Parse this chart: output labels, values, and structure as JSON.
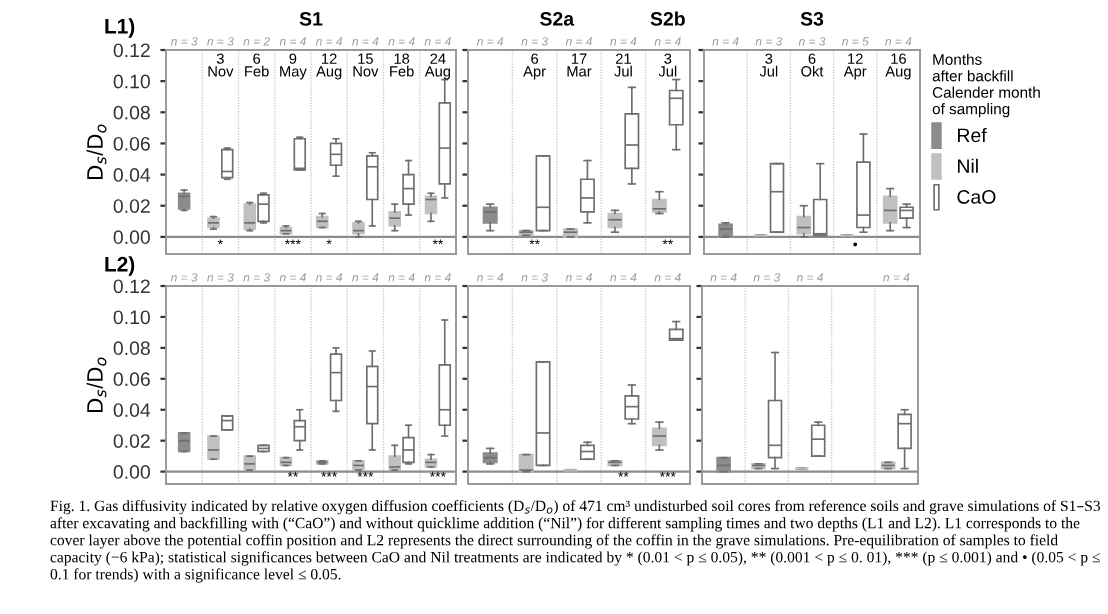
{
  "chart_data": [
    {
      "type": "box",
      "title": "S1",
      "ylabel": "D$_{s}$/D$_{o}$",
      "categories": [
        null,
        "3\nNov",
        "6\nFeb",
        "9\nMay",
        "12\nAug",
        "15\nNov",
        "18\nFeb",
        "24\nAug"
      ],
      "ylim": [
        -0.011,
        0.12
      ],
      "yticks": [
        {
          "value": 0,
          "label": "0.00"
        },
        {
          "value": 0.02,
          "label": "0.02"
        },
        {
          "value": 0.04,
          "label": "0.04"
        },
        {
          "value": 0.06,
          "label": "0.06"
        },
        {
          "value": 0.08,
          "label": "0.08"
        },
        {
          "value": 0.1,
          "label": "0.10"
        },
        {
          "value": 0.12,
          "label": "0.12"
        }
      ],
      "ref_lines": [
        {
          "axis": "y",
          "value": 0,
          "color": "#8c8c8c"
        }
      ],
      "annotations": [
        "n = 3",
        "n = 3",
        "n = 2",
        "n = 4",
        "n = 4",
        "n = 4",
        "n = 4",
        "n = 4"
      ],
      "series": [
        {
          "color": "#8c8c8c",
          "boxes": [
            {
              "low": 0.017,
              "q1": 0.018,
              "median": 0.026,
              "q3": 0.028,
              "high": 0.03
            },
            null,
            null,
            null,
            null,
            null,
            null,
            null
          ]
        },
        {
          "color": "#c0c0c0",
          "boxes": [
            null,
            {
              "low": 0.005,
              "q1": 0.006,
              "median": 0.009,
              "q3": 0.012,
              "high": 0.013
            },
            {
              "low": 0.004,
              "q1": 0.005,
              "median": 0.009,
              "q3": 0.021,
              "high": 0.022
            },
            {
              "low": 0.002,
              "q1": 0.002,
              "median": 0.004,
              "q3": 0.006,
              "high": 0.007
            },
            {
              "low": 0.006,
              "q1": 0.006,
              "median": 0.01,
              "q3": 0.013,
              "high": 0.015
            },
            {
              "low": 0.0,
              "q1": 0.002,
              "median": 0.004,
              "q3": 0.009,
              "high": 0.01
            },
            {
              "low": 0.004,
              "q1": 0.007,
              "median": 0.012,
              "q3": 0.016,
              "high": 0.021
            },
            {
              "low": 0.01,
              "q1": 0.015,
              "median": 0.024,
              "q3": 0.026,
              "high": 0.028
            }
          ]
        },
        {
          "color": "#ffffff",
          "value_labels": [
            null,
            "*",
            null,
            "***",
            "*",
            null,
            null,
            "**"
          ],
          "boxes": [
            null,
            {
              "low": 0.037,
              "q1": 0.038,
              "median": 0.042,
              "q3": 0.056,
              "high": 0.057
            },
            {
              "low": 0.009,
              "q1": 0.01,
              "median": 0.021,
              "q3": 0.027,
              "high": 0.028
            },
            {
              "low": 0.043,
              "q1": 0.043,
              "median": 0.044,
              "q3": 0.063,
              "high": 0.064
            },
            {
              "low": 0.039,
              "q1": 0.046,
              "median": 0.053,
              "q3": 0.06,
              "high": 0.063
            },
            {
              "low": 0.007,
              "q1": 0.024,
              "median": 0.045,
              "q3": 0.052,
              "high": 0.054
            },
            {
              "low": 0.014,
              "q1": 0.021,
              "median": 0.031,
              "q3": 0.04,
              "high": 0.049
            },
            {
              "low": 0.025,
              "q1": 0.034,
              "median": 0.057,
              "q3": 0.086,
              "high": 0.101
            }
          ]
        }
      ]
    },
    {
      "type": "box",
      "title": "S2a",
      "subtitle": "S2b",
      "tick_labels": "x",
      "categories": [
        null,
        "6\nApr",
        "17\nMar",
        "21\nJul",
        "3\nJul"
      ],
      "ylim": [
        -0.011,
        0.12
      ],
      "yticks": [
        0,
        0.02,
        0.04,
        0.06,
        0.08,
        0.1,
        0.12
      ],
      "ref_lines": [
        {
          "axis": "y",
          "value": 0,
          "color": "#8c8c8c"
        }
      ],
      "annotations": [
        "n = 4",
        "n = 3",
        "n = 4",
        "n = 4",
        "n = 4"
      ],
      "series": [
        {
          "color": "#8c8c8c",
          "boxes": [
            {
              "low": 0.004,
              "q1": 0.009,
              "median": 0.016,
              "q3": 0.019,
              "high": 0.021
            },
            null,
            null,
            null,
            null
          ]
        },
        {
          "color": "#c0c0c0",
          "boxes": [
            null,
            {
              "low": 0.001,
              "q1": 0.001,
              "median": 0.003,
              "q3": 0.004,
              "high": 0.004
            },
            {
              "low": 0.0,
              "q1": 0.0,
              "median": 0.003,
              "q3": 0.005,
              "high": 0.005
            },
            {
              "low": 0.003,
              "q1": 0.006,
              "median": 0.011,
              "q3": 0.015,
              "high": 0.017
            },
            {
              "low": 0.015,
              "q1": 0.016,
              "median": 0.018,
              "q3": 0.024,
              "high": 0.029
            }
          ]
        },
        {
          "color": "#ffffff",
          "value_labels": [
            null,
            "**",
            null,
            null,
            "**"
          ],
          "boxes": [
            null,
            {
              "low": 0.004,
              "q1": 0.004,
              "median": 0.019,
              "q3": 0.052,
              "high": 0.052
            },
            {
              "low": 0.009,
              "q1": 0.016,
              "median": 0.025,
              "q3": 0.037,
              "high": 0.049
            },
            {
              "low": 0.034,
              "q1": 0.044,
              "median": 0.059,
              "q3": 0.079,
              "high": 0.096
            },
            {
              "low": 0.056,
              "q1": 0.072,
              "median": 0.089,
              "q3": 0.094,
              "high": 0.101
            }
          ]
        }
      ]
    },
    {
      "type": "box",
      "title": "S3",
      "tick_labels": "x",
      "legend": "right",
      "legend_title": "Months\nafter backfill\nCalender month\nof sampling",
      "categories": [
        null,
        "3\nJul",
        "6\nOkt",
        "12\nApr",
        "16\nAug"
      ],
      "ylim": [
        -0.011,
        0.12
      ],
      "yticks": [
        0,
        0.02,
        0.04,
        0.06,
        0.08,
        0.1,
        0.12
      ],
      "ref_lines": [
        {
          "axis": "y",
          "value": 0,
          "color": "#8c8c8c"
        }
      ],
      "annotations": [
        "n = 4",
        "n = 3",
        "n = 3",
        "n = 5",
        "n = 4"
      ],
      "series": [
        {
          "name": "Ref",
          "color": "#8c8c8c",
          "boxes": [
            {
              "low": 0.0,
              "q1": 0.001,
              "median": 0.005,
              "q3": 0.008,
              "high": 0.009
            },
            null,
            null,
            null,
            null
          ]
        },
        {
          "name": "Nil",
          "color": "#c0c0c0",
          "boxes": [
            null,
            {
              "low": 0.001,
              "q1": 0.001,
              "median": 0.001,
              "q3": 0.001,
              "high": 0.001
            },
            {
              "low": 0.0,
              "q1": 0.002,
              "median": 0.006,
              "q3": 0.013,
              "high": 0.02
            },
            {
              "low": 0.001,
              "q1": 0.001,
              "median": 0.001,
              "q3": 0.001,
              "high": 0.001
            },
            {
              "low": 0.004,
              "q1": 0.009,
              "median": 0.017,
              "q3": 0.026,
              "high": 0.031
            }
          ]
        },
        {
          "name": "CaO",
          "color": "#ffffff",
          "value_labels": [
            null,
            null,
            null,
            "•",
            null
          ],
          "boxes": [
            null,
            {
              "low": 0.003,
              "q1": 0.003,
              "median": 0.029,
              "q3": 0.047,
              "high": 0.047
            },
            {
              "low": 0.001,
              "q1": 0.001,
              "median": 0.002,
              "q3": 0.024,
              "high": 0.047
            },
            {
              "low": 0.003,
              "q1": 0.006,
              "median": 0.014,
              "q3": 0.048,
              "high": 0.066
            },
            {
              "low": 0.006,
              "q1": 0.012,
              "median": 0.017,
              "q3": 0.019,
              "high": 0.021
            }
          ]
        }
      ]
    },
    {
      "type": "box",
      "ylabel": "D$_{s}$/D$_{o}$",
      "tick_labels": "y",
      "categories": [
        null,
        null,
        null,
        null,
        null,
        null,
        null,
        null
      ],
      "ylim": [
        -0.008,
        0.12
      ],
      "yticks": [
        {
          "value": 0,
          "label": "0.00"
        },
        {
          "value": 0.02,
          "label": "0.02"
        },
        {
          "value": 0.04,
          "label": "0.04"
        },
        {
          "value": 0.06,
          "label": "0.06"
        },
        {
          "value": 0.08,
          "label": "0.08"
        },
        {
          "value": 0.1,
          "label": "0.10"
        },
        {
          "value": 0.12,
          "label": "0.12"
        }
      ],
      "ref_lines": [
        {
          "axis": "y",
          "value": 0,
          "color": "#8c8c8c"
        }
      ],
      "annotations": [
        "n = 3",
        "n = 3",
        "n = 3",
        "n = 4",
        "n = 4",
        "n = 4",
        "n = 4",
        "n = 4"
      ],
      "series": [
        {
          "color": "#8c8c8c",
          "boxes": [
            {
              "low": 0.013,
              "q1": 0.013,
              "median": 0.02,
              "q3": 0.025,
              "high": 0.025
            },
            null,
            null,
            null,
            null,
            null,
            null,
            null
          ]
        },
        {
          "color": "#c0c0c0",
          "boxes": [
            null,
            {
              "low": 0.008,
              "q1": 0.008,
              "median": 0.014,
              "q3": 0.023,
              "high": 0.023
            },
            {
              "low": 0.001,
              "q1": 0.001,
              "median": 0.005,
              "q3": 0.01,
              "high": 0.01
            },
            {
              "low": 0.004,
              "q1": 0.004,
              "median": 0.006,
              "q3": 0.009,
              "high": 0.009
            },
            {
              "low": 0.005,
              "q1": 0.005,
              "median": 0.006,
              "q3": 0.007,
              "high": 0.007
            },
            {
              "low": 0.001,
              "q1": 0.001,
              "median": 0.004,
              "q3": 0.007,
              "high": 0.007
            },
            {
              "low": 0.001,
              "q1": 0.001,
              "median": 0.003,
              "q3": 0.01,
              "high": 0.017
            },
            {
              "low": 0.003,
              "q1": 0.003,
              "median": 0.006,
              "q3": 0.008,
              "high": 0.011
            }
          ]
        },
        {
          "color": "#ffffff",
          "value_labels": [
            null,
            null,
            null,
            "**",
            "***",
            "***",
            null,
            "***"
          ],
          "boxes": [
            null,
            {
              "low": 0.027,
              "q1": 0.027,
              "median": 0.033,
              "q3": 0.036,
              "high": 0.036
            },
            {
              "low": 0.013,
              "q1": 0.013,
              "median": 0.015,
              "q3": 0.017,
              "high": 0.017
            },
            {
              "low": 0.014,
              "q1": 0.02,
              "median": 0.029,
              "q3": 0.033,
              "high": 0.04
            },
            {
              "low": 0.039,
              "q1": 0.046,
              "median": 0.064,
              "q3": 0.076,
              "high": 0.08
            },
            {
              "low": 0.014,
              "q1": 0.031,
              "median": 0.055,
              "q3": 0.068,
              "high": 0.078
            },
            {
              "low": 0.005,
              "q1": 0.006,
              "median": 0.014,
              "q3": 0.022,
              "high": 0.03
            },
            {
              "low": 0.023,
              "q1": 0.03,
              "median": 0.04,
              "q3": 0.069,
              "high": 0.098
            }
          ]
        }
      ]
    },
    {
      "type": "box",
      "tick_labels": false,
      "categories": [
        null,
        null,
        null,
        null,
        null
      ],
      "ylim": [
        -0.008,
        0.12
      ],
      "yticks": [
        0,
        0.02,
        0.04,
        0.06,
        0.08,
        0.1,
        0.12
      ],
      "ref_lines": [
        {
          "axis": "y",
          "value": 0,
          "color": "#8c8c8c"
        }
      ],
      "annotations": [
        "n = 4",
        "n = 3",
        "n = 4",
        "n = 4",
        "n = 4"
      ],
      "series": [
        {
          "color": "#8c8c8c",
          "boxes": [
            {
              "low": 0.005,
              "q1": 0.006,
              "median": 0.009,
              "q3": 0.012,
              "high": 0.015
            },
            null,
            null,
            null,
            null
          ]
        },
        {
          "color": "#c0c0c0",
          "boxes": [
            null,
            {
              "low": 0.0,
              "q1": 0.0,
              "median": 0.001,
              "q3": 0.011,
              "high": 0.011
            },
            {
              "low": 0.001,
              "q1": 0.001,
              "median": 0.001,
              "q3": 0.001,
              "high": 0.001
            },
            {
              "low": 0.004,
              "q1": 0.004,
              "median": 0.006,
              "q3": 0.007,
              "high": 0.007
            },
            {
              "low": 0.014,
              "q1": 0.017,
              "median": 0.023,
              "q3": 0.028,
              "high": 0.032
            }
          ]
        },
        {
          "color": "#ffffff",
          "value_labels": [
            null,
            null,
            null,
            "**",
            "***"
          ],
          "boxes": [
            null,
            {
              "low": 0.004,
              "q1": 0.004,
              "median": 0.025,
              "q3": 0.071,
              "high": 0.071
            },
            {
              "low": 0.008,
              "q1": 0.008,
              "median": 0.013,
              "q3": 0.017,
              "high": 0.019
            },
            {
              "low": 0.031,
              "q1": 0.034,
              "median": 0.042,
              "q3": 0.049,
              "high": 0.056
            },
            {
              "low": 0.085,
              "q1": 0.085,
              "median": 0.086,
              "q3": 0.092,
              "high": 0.097
            }
          ]
        }
      ]
    },
    {
      "type": "box",
      "tick_labels": false,
      "categories": [
        null,
        null,
        null,
        null,
        null
      ],
      "ylim": [
        -0.008,
        0.12
      ],
      "yticks": [
        0,
        0.02,
        0.04,
        0.06,
        0.08,
        0.1,
        0.12
      ],
      "ref_lines": [
        {
          "axis": "y",
          "value": 0,
          "color": "#8c8c8c"
        }
      ],
      "annotations": [
        "n = 4",
        "n = 3",
        "n = 4",
        null,
        "n = 4"
      ],
      "series": [
        {
          "color": "#8c8c8c",
          "boxes": [
            {
              "low": 0.0,
              "q1": 0.0,
              "median": 0.004,
              "q3": 0.009,
              "high": 0.009
            },
            null,
            null,
            null,
            null
          ]
        },
        {
          "color": "#c0c0c0",
          "boxes": [
            null,
            {
              "low": 0.002,
              "q1": 0.002,
              "median": 0.004,
              "q3": 0.005,
              "high": 0.005
            },
            {
              "low": 0.002,
              "q1": 0.002,
              "median": 0.002,
              "q3": 0.002,
              "high": 0.002
            },
            null,
            {
              "low": 0.002,
              "q1": 0.002,
              "median": 0.004,
              "q3": 0.006,
              "high": 0.006
            }
          ]
        },
        {
          "color": "#ffffff",
          "boxes": [
            null,
            {
              "low": 0.002,
              "q1": 0.009,
              "median": 0.017,
              "q3": 0.046,
              "high": 0.077
            },
            {
              "low": 0.01,
              "q1": 0.01,
              "median": 0.021,
              "q3": 0.03,
              "high": 0.032
            },
            null,
            {
              "low": 0.002,
              "q1": 0.015,
              "median": 0.031,
              "q3": 0.037,
              "high": 0.04
            }
          ]
        }
      ]
    },
    {
      "type": "other",
      "annotations": [
        "L1)",
        "L2)",
        "Fig. 1. Gas diffusivity indicated by relative oxygen diffusion coefficients (D$_{s}$/D$_{o}$) of 471 cm³ undisturbed soil cores from reference soils and grave simulations of S1–S3 after excavating and backfilling with (“CaO”) and without quicklime addition (“Nil”) for different sampling times and two depths (L1 and L2). L1 corresponds to the cover layer above the potential coffin position and L2 represents the direct surrounding of the coffin in the grave simulations. Pre-equilibration of samples to field capacity (−6 kPa); statistical significances between CaO and Nil treatments are indicated by * (0.01 < p ≤ 0.05), ** (0.001 < p ≤ 0. 01), *** (p ≤ 0.001) and • (0.05 < p ≤ 0.1 for trends) with a significance level ≤ 0.05."
      ]
    }
  ]
}
